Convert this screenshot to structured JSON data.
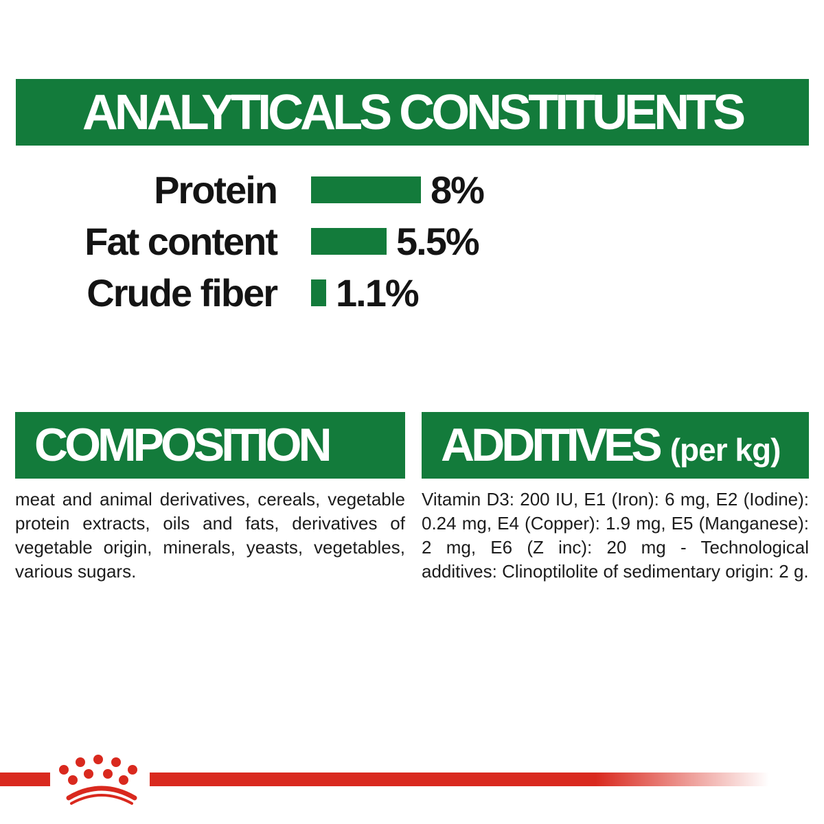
{
  "colors": {
    "green": "#137b3b",
    "red": "#d9291e",
    "text": "#1c1c1c",
    "white": "#ffffff"
  },
  "banner": {
    "title": "ANALYTICALS CONSTITUENTS"
  },
  "chart_data": {
    "type": "bar",
    "orientation": "horizontal",
    "title": "ANALYTICALS CONSTITUENTS",
    "categories": [
      "Protein",
      "Fat content",
      "Crude fiber"
    ],
    "values": [
      8,
      5.5,
      1.1
    ],
    "value_labels": [
      "8%",
      "5.5%",
      "1.1%"
    ],
    "unit": "%",
    "xlim": [
      0,
      8
    ],
    "grid": false,
    "bar_color": "#137b3b",
    "value_label_position": "right-of-bar"
  },
  "composition": {
    "heading": "COMPOSITION",
    "body": "meat and animal derivatives, cereals, vegetable protein extracts, oils and fats, derivatives of vegetable origin, minerals, yeasts, vegetables, various sugars."
  },
  "additives": {
    "heading": "ADDITIVES",
    "heading_suffix": "(per kg)",
    "body": "Vitamin D3: 200 IU, E1 (Iron): 6 mg, E2 (Iodine): 0.24 mg, E4 (Copper): 1.9 mg, E5 (Manganese): 2 mg, E6 (Z inc): 20 mg - Technological additives: Clinoptilolite of sedimentary origin: 2 g."
  },
  "footer": {
    "logo": "royal-canin-crown-logo",
    "logo_color": "#d9291e"
  }
}
